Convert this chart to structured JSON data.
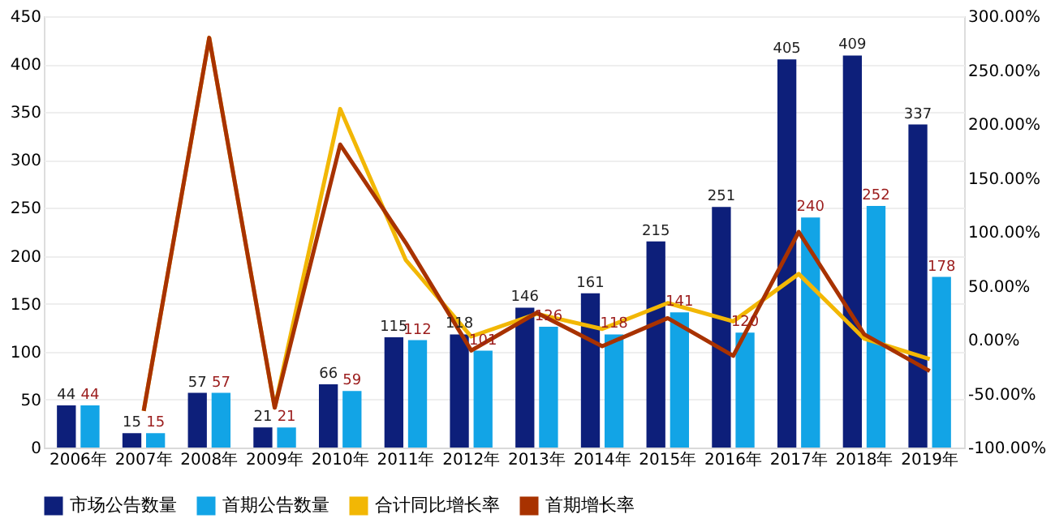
{
  "chart_data": {
    "type": "bar",
    "categories": [
      "2006年",
      "2007年",
      "2008年",
      "2009年",
      "2010年",
      "2011年",
      "2012年",
      "2013年",
      "2014年",
      "2015年",
      "2016年",
      "2017年",
      "2018年",
      "2019年"
    ],
    "series": [
      {
        "name": "市场公告数量",
        "color": "#0d1f7a",
        "values": [
          44,
          15,
          57,
          21,
          66,
          115,
          118,
          146,
          161,
          215,
          251,
          405,
          409,
          337
        ],
        "value_labels": [
          "44",
          "15",
          "57",
          "21",
          "66",
          "115",
          "118",
          "146",
          "161",
          "215",
          "251",
          "405",
          "409",
          "337"
        ]
      },
      {
        "name": "首期公告数量",
        "color": "#12a4e6",
        "values": [
          44,
          15,
          57,
          21,
          59,
          112,
          101,
          126,
          118,
          141,
          120,
          240,
          252,
          178
        ],
        "value_labels": [
          "44",
          "15",
          "57",
          "21",
          "59",
          "112",
          "101",
          "126",
          "118",
          "141",
          "120",
          "240",
          "252",
          "178"
        ]
      },
      {
        "name": "合计同比增长率",
        "type": "line",
        "axis": "y2",
        "color": "#f2b705",
        "values": [
          null,
          -66,
          280,
          -63,
          214,
          74,
          3,
          24,
          10,
          34,
          17,
          61,
          1,
          -18
        ]
      },
      {
        "name": "首期增长率",
        "type": "line",
        "axis": "y2",
        "color": "#a83200",
        "values": [
          null,
          -66,
          280,
          -63,
          181,
          90,
          -10,
          25,
          -6,
          20,
          -15,
          100,
          5,
          -29
        ]
      }
    ],
    "ylim": [
      0,
      450
    ],
    "yticks": [
      0,
      50,
      100,
      150,
      200,
      250,
      300,
      350,
      400,
      450
    ],
    "y2lim": [
      -100,
      300
    ],
    "y2ticks": [
      {
        "value": -100,
        "label": "-100.00%"
      },
      {
        "value": -50,
        "label": "-50.00%"
      },
      {
        "value": 0,
        "label": "0.00%"
      },
      {
        "value": 50,
        "label": "50.00%"
      },
      {
        "value": 100,
        "label": "100.00%"
      },
      {
        "value": 150,
        "label": "150.00%"
      },
      {
        "value": 200,
        "label": "200.00%"
      },
      {
        "value": 250,
        "label": "250.00%"
      },
      {
        "value": 300,
        "label": "300.00%"
      }
    ],
    "grid": "y",
    "legend": "bottom"
  }
}
